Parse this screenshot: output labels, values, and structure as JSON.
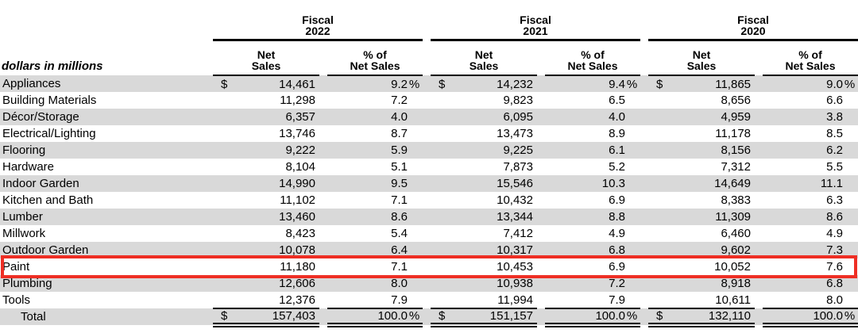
{
  "meta": {
    "unit_label": "dollars in millions"
  },
  "header": {
    "fiscal_label": "Fiscal",
    "years": [
      "2022",
      "2021",
      "2020"
    ],
    "net_sales_line1": "Net",
    "net_sales_line2": "Sales",
    "pct_line1": "% of",
    "pct_line2": "Net Sales"
  },
  "rows": [
    {
      "label": "Appliances",
      "cells": [
        {
          "d": "$",
          "net": "14,461",
          "pct": "9.2",
          "ps": "%"
        },
        {
          "d": "$",
          "net": "14,232",
          "pct": "9.4",
          "ps": "%"
        },
        {
          "d": "$",
          "net": "11,865",
          "pct": "9.0",
          "ps": "%"
        }
      ]
    },
    {
      "label": "Building Materials",
      "cells": [
        {
          "d": "",
          "net": "11,298",
          "pct": "7.2",
          "ps": ""
        },
        {
          "d": "",
          "net": "9,823",
          "pct": "6.5",
          "ps": ""
        },
        {
          "d": "",
          "net": "8,656",
          "pct": "6.6",
          "ps": ""
        }
      ]
    },
    {
      "label": "Décor/Storage",
      "cells": [
        {
          "d": "",
          "net": "6,357",
          "pct": "4.0",
          "ps": ""
        },
        {
          "d": "",
          "net": "6,095",
          "pct": "4.0",
          "ps": ""
        },
        {
          "d": "",
          "net": "4,959",
          "pct": "3.8",
          "ps": ""
        }
      ]
    },
    {
      "label": "Electrical/Lighting",
      "cells": [
        {
          "d": "",
          "net": "13,746",
          "pct": "8.7",
          "ps": ""
        },
        {
          "d": "",
          "net": "13,473",
          "pct": "8.9",
          "ps": ""
        },
        {
          "d": "",
          "net": "11,178",
          "pct": "8.5",
          "ps": ""
        }
      ]
    },
    {
      "label": "Flooring",
      "cells": [
        {
          "d": "",
          "net": "9,222",
          "pct": "5.9",
          "ps": ""
        },
        {
          "d": "",
          "net": "9,225",
          "pct": "6.1",
          "ps": ""
        },
        {
          "d": "",
          "net": "8,156",
          "pct": "6.2",
          "ps": ""
        }
      ]
    },
    {
      "label": "Hardware",
      "cells": [
        {
          "d": "",
          "net": "8,104",
          "pct": "5.1",
          "ps": ""
        },
        {
          "d": "",
          "net": "7,873",
          "pct": "5.2",
          "ps": ""
        },
        {
          "d": "",
          "net": "7,312",
          "pct": "5.5",
          "ps": ""
        }
      ]
    },
    {
      "label": "Indoor Garden",
      "cells": [
        {
          "d": "",
          "net": "14,990",
          "pct": "9.5",
          "ps": ""
        },
        {
          "d": "",
          "net": "15,546",
          "pct": "10.3",
          "ps": ""
        },
        {
          "d": "",
          "net": "14,649",
          "pct": "11.1",
          "ps": ""
        }
      ]
    },
    {
      "label": "Kitchen and Bath",
      "cells": [
        {
          "d": "",
          "net": "11,102",
          "pct": "7.1",
          "ps": ""
        },
        {
          "d": "",
          "net": "10,432",
          "pct": "6.9",
          "ps": ""
        },
        {
          "d": "",
          "net": "8,383",
          "pct": "6.3",
          "ps": ""
        }
      ]
    },
    {
      "label": "Lumber",
      "cells": [
        {
          "d": "",
          "net": "13,460",
          "pct": "8.6",
          "ps": ""
        },
        {
          "d": "",
          "net": "13,344",
          "pct": "8.8",
          "ps": ""
        },
        {
          "d": "",
          "net": "11,309",
          "pct": "8.6",
          "ps": ""
        }
      ]
    },
    {
      "label": "Millwork",
      "cells": [
        {
          "d": "",
          "net": "8,423",
          "pct": "5.4",
          "ps": ""
        },
        {
          "d": "",
          "net": "7,412",
          "pct": "4.9",
          "ps": ""
        },
        {
          "d": "",
          "net": "6,460",
          "pct": "4.9",
          "ps": ""
        }
      ]
    },
    {
      "label": "Outdoor Garden",
      "cells": [
        {
          "d": "",
          "net": "10,078",
          "pct": "6.4",
          "ps": ""
        },
        {
          "d": "",
          "net": "10,317",
          "pct": "6.8",
          "ps": ""
        },
        {
          "d": "",
          "net": "9,602",
          "pct": "7.3",
          "ps": ""
        }
      ]
    },
    {
      "label": "Paint",
      "cells": [
        {
          "d": "",
          "net": "11,180",
          "pct": "7.1",
          "ps": ""
        },
        {
          "d": "",
          "net": "10,453",
          "pct": "6.9",
          "ps": ""
        },
        {
          "d": "",
          "net": "10,052",
          "pct": "7.6",
          "ps": ""
        }
      ]
    },
    {
      "label": "Plumbing",
      "cells": [
        {
          "d": "",
          "net": "12,606",
          "pct": "8.0",
          "ps": ""
        },
        {
          "d": "",
          "net": "10,938",
          "pct": "7.2",
          "ps": ""
        },
        {
          "d": "",
          "net": "8,918",
          "pct": "6.8",
          "ps": ""
        }
      ]
    },
    {
      "label": "Tools",
      "cells": [
        {
          "d": "",
          "net": "12,376",
          "pct": "7.9",
          "ps": ""
        },
        {
          "d": "",
          "net": "11,994",
          "pct": "7.9",
          "ps": ""
        },
        {
          "d": "",
          "net": "10,611",
          "pct": "8.0",
          "ps": ""
        }
      ]
    }
  ],
  "total": {
    "label": "Total",
    "cells": [
      {
        "d": "$",
        "net": "157,403",
        "pct": "100.0",
        "ps": "%"
      },
      {
        "d": "$",
        "net": "151,157",
        "pct": "100.0",
        "ps": "%"
      },
      {
        "d": "$",
        "net": "132,110",
        "pct": "100.0",
        "ps": "%"
      }
    ]
  },
  "highlight": {
    "row": "Paint",
    "color": "#ee2e24"
  },
  "colors": {
    "row_shade": "#d9d9d9",
    "rule": "#000000"
  }
}
